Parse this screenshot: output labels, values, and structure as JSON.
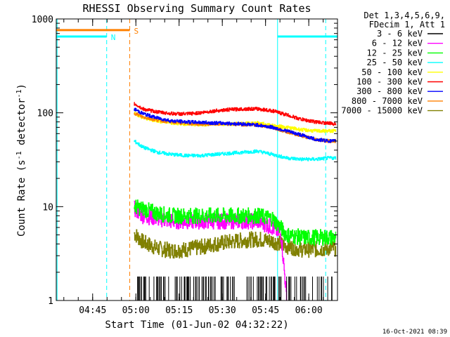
{
  "chart_data": {
    "type": "line",
    "title": "RHESSI Observing Summary Count Rates",
    "xlabel": "Start Time (01-Jun-02 04:32:22)",
    "ylabel": "Count Rate (s",
    "ylabel_sup": "-1",
    "ylabel_tail": " detector",
    "ylabel_end": ")",
    "yscale": "log",
    "ylim": [
      1,
      1000
    ],
    "xlim_minutes_after_start": [
      0,
      97.6
    ],
    "y_ticks": [
      {
        "value": 1,
        "label": "1"
      },
      {
        "value": 10,
        "label": "10"
      },
      {
        "value": 100,
        "label": "100"
      },
      {
        "value": 1000,
        "label": "1000"
      }
    ],
    "x_ticks": [
      {
        "value": 12.63,
        "label": "04:45"
      },
      {
        "value": 27.63,
        "label": "05:00"
      },
      {
        "value": 42.63,
        "label": "05:15"
      },
      {
        "value": 57.63,
        "label": "05:30"
      },
      {
        "value": 72.63,
        "label": "05:45"
      },
      {
        "value": 87.63,
        "label": "06:00"
      }
    ],
    "legend_header": [
      "Det 1,3,4,5,6,9,",
      "FDecim 1, Att 1"
    ],
    "legend_position": "right",
    "series": [
      {
        "name": "3 - 6 keV",
        "color": "#000000",
        "x": [
          27.0,
          97.0
        ],
        "y": [
          1.8,
          1.8
        ],
        "note": "sparse spikes between 1 and 2"
      },
      {
        "name": "6 - 12 keV",
        "color": "#ff00ff",
        "x": [
          27.0,
          30,
          35,
          40,
          45,
          50,
          55,
          60,
          65,
          70,
          75,
          78,
          80
        ],
        "y": [
          9.5,
          8,
          7.5,
          7,
          7,
          7,
          7,
          7,
          7,
          7,
          6,
          5,
          1.0
        ]
      },
      {
        "name": "12 - 25 keV",
        "color": "#00ff00",
        "x": [
          27.0,
          30,
          35,
          40,
          45,
          50,
          55,
          60,
          65,
          70,
          75,
          80,
          85,
          90,
          95,
          97
        ],
        "y": [
          10,
          9.5,
          8.5,
          8,
          8,
          8,
          8,
          8,
          8,
          8,
          7.5,
          5,
          4.7,
          4.7,
          4.7,
          4.7
        ]
      },
      {
        "name": "25 - 50 keV",
        "color": "#00ffff",
        "x": [
          27.0,
          30,
          35,
          40,
          45,
          50,
          55,
          60,
          65,
          70,
          75,
          80,
          85,
          90,
          95,
          97
        ],
        "y": [
          50,
          43,
          38,
          36,
          35,
          35,
          36,
          37,
          38,
          39,
          36,
          33,
          32,
          32,
          33,
          33
        ]
      },
      {
        "name": "50 - 100 keV",
        "color": "#ffff00",
        "x": [
          27.0,
          30,
          35,
          40,
          45,
          50,
          55,
          60,
          65,
          70,
          75,
          80,
          85,
          90,
          95,
          97
        ],
        "y": [
          100,
          88,
          82,
          78,
          76,
          75,
          76,
          76,
          77,
          78,
          73,
          70,
          66,
          64,
          64,
          64
        ]
      },
      {
        "name": "100 - 300 keV",
        "color": "#ff0000",
        "x": [
          27.0,
          30,
          35,
          40,
          45,
          50,
          55,
          60,
          65,
          70,
          75,
          80,
          85,
          90,
          95,
          97
        ],
        "y": [
          125,
          110,
          102,
          98,
          97,
          100,
          105,
          108,
          110,
          110,
          105,
          95,
          85,
          80,
          77,
          76
        ]
      },
      {
        "name": "300 - 800 keV",
        "color": "#0000ff",
        "x": [
          27.0,
          30,
          35,
          40,
          45,
          50,
          55,
          60,
          65,
          70,
          75,
          80,
          85,
          90,
          95,
          97
        ],
        "y": [
          110,
          98,
          88,
          82,
          80,
          79,
          78,
          77,
          76,
          74,
          70,
          64,
          58,
          52,
          50,
          50
        ]
      },
      {
        "name": "800 - 7000 keV",
        "color": "#ff8000",
        "x": [
          27.0,
          30,
          35,
          40,
          45,
          50,
          55,
          60,
          65,
          70,
          75,
          80,
          85,
          90,
          95,
          97
        ],
        "y": [
          100,
          90,
          84,
          80,
          77,
          76,
          76,
          76,
          75,
          74,
          70,
          63,
          57,
          52,
          50,
          50
        ]
      },
      {
        "name": "7000 - 15000 keV",
        "color": "#808000",
        "x": [
          27.0,
          30,
          35,
          40,
          45,
          50,
          55,
          60,
          65,
          70,
          75,
          80,
          85,
          90,
          95,
          97
        ],
        "y": [
          5.2,
          4.2,
          3.6,
          3.4,
          3.5,
          3.7,
          4,
          4.2,
          4.4,
          4.5,
          4.3,
          3.8,
          3.5,
          3.5,
          3.6,
          3.6
        ]
      }
    ],
    "annotations": [
      {
        "name": "N",
        "label": "N",
        "color": "#00ffff",
        "level": 650,
        "x_start": 0,
        "x_end": 17.5,
        "note": "night intervals"
      },
      {
        "name": "N2",
        "label": "",
        "color": "#00ffff",
        "level": 650,
        "x_start": 76.8,
        "x_end": 97.6
      },
      {
        "name": "S",
        "label": "S",
        "color": "#ff8000",
        "level": 760,
        "x_start": 0,
        "x_end": 25.5,
        "note": "SAA interval"
      }
    ],
    "vertical_markers": [
      {
        "x": 0.3,
        "color": "#00ffff",
        "style": "solid"
      },
      {
        "x": 17.5,
        "color": "#00ffff",
        "style": "dashed"
      },
      {
        "x": 25.5,
        "color": "#ff8000",
        "style": "dashed"
      },
      {
        "x": 76.8,
        "color": "#00ffff",
        "style": "solid"
      },
      {
        "x": 93.5,
        "color": "#00ffff",
        "style": "dashed"
      }
    ]
  },
  "footer_timestamp": "16-Oct-2021 08:39"
}
